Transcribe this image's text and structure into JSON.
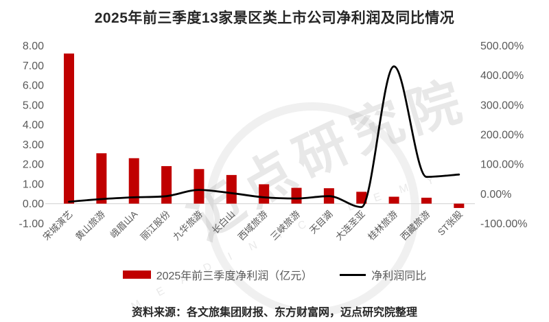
{
  "page": {
    "title": "2025年前三季度13家景区类上市公司净利润及同比情况",
    "source_note": "资料来源：各文旅集团财报、东方财富网，迈点研究院整理"
  },
  "watermark": {
    "main_text": "迈点研究院",
    "latin_text": "M E A D I N   A C A D E M Y"
  },
  "colors": {
    "bar": "#C00000",
    "line": "#000000",
    "axis_line": "#D9D9D9",
    "tick_text": "#595959",
    "title_text": "#262626"
  },
  "chart_data": {
    "type": "bar",
    "subtype": "combo-bar-line-dual-axis",
    "title": "2025年前三季度13家景区类上市公司净利润及同比情况",
    "categories": [
      "宋城演艺",
      "黄山旅游",
      "峨眉山A",
      "丽江股份",
      "九华旅游",
      "长白山",
      "西域旅游",
      "三峡旅游",
      "天目湖",
      "大连圣亚",
      "桂林旅游",
      "西藏旅游",
      "ST张股"
    ],
    "series": [
      {
        "name": "2025年前三季度净利润（亿元）",
        "type": "bar",
        "axis": "left",
        "color": "#C00000",
        "values": [
          7.6,
          2.55,
          2.3,
          1.9,
          1.75,
          1.45,
          0.98,
          0.8,
          0.78,
          0.6,
          0.35,
          0.3,
          -0.22
        ]
      },
      {
        "name": "净利润同比",
        "type": "line",
        "axis": "right",
        "unit": "%",
        "color": "#000000",
        "values": [
          -27,
          -18,
          -12,
          -8,
          13,
          2,
          -12,
          -16,
          -8,
          -45,
          430,
          57,
          65
        ]
      }
    ],
    "left_axis": {
      "ticks": [
        "8.00",
        "7.00",
        "6.00",
        "5.00",
        "4.00",
        "3.00",
        "2.00",
        "1.00",
        "0.00",
        "-1.00"
      ],
      "min": -1,
      "max": 8
    },
    "right_axis": {
      "ticks": [
        "500.00%",
        "400.00%",
        "300.00%",
        "200.00%",
        "100.00%",
        "0.00%",
        "-100.00%"
      ],
      "min_pct": -100,
      "max_pct": 500
    },
    "grid": "off",
    "legend_position": "bottom",
    "legend": [
      {
        "label": "2025年前三季度净利润（亿元）",
        "swatch": "bar"
      },
      {
        "label": "净利润同比",
        "swatch": "line"
      }
    ]
  }
}
